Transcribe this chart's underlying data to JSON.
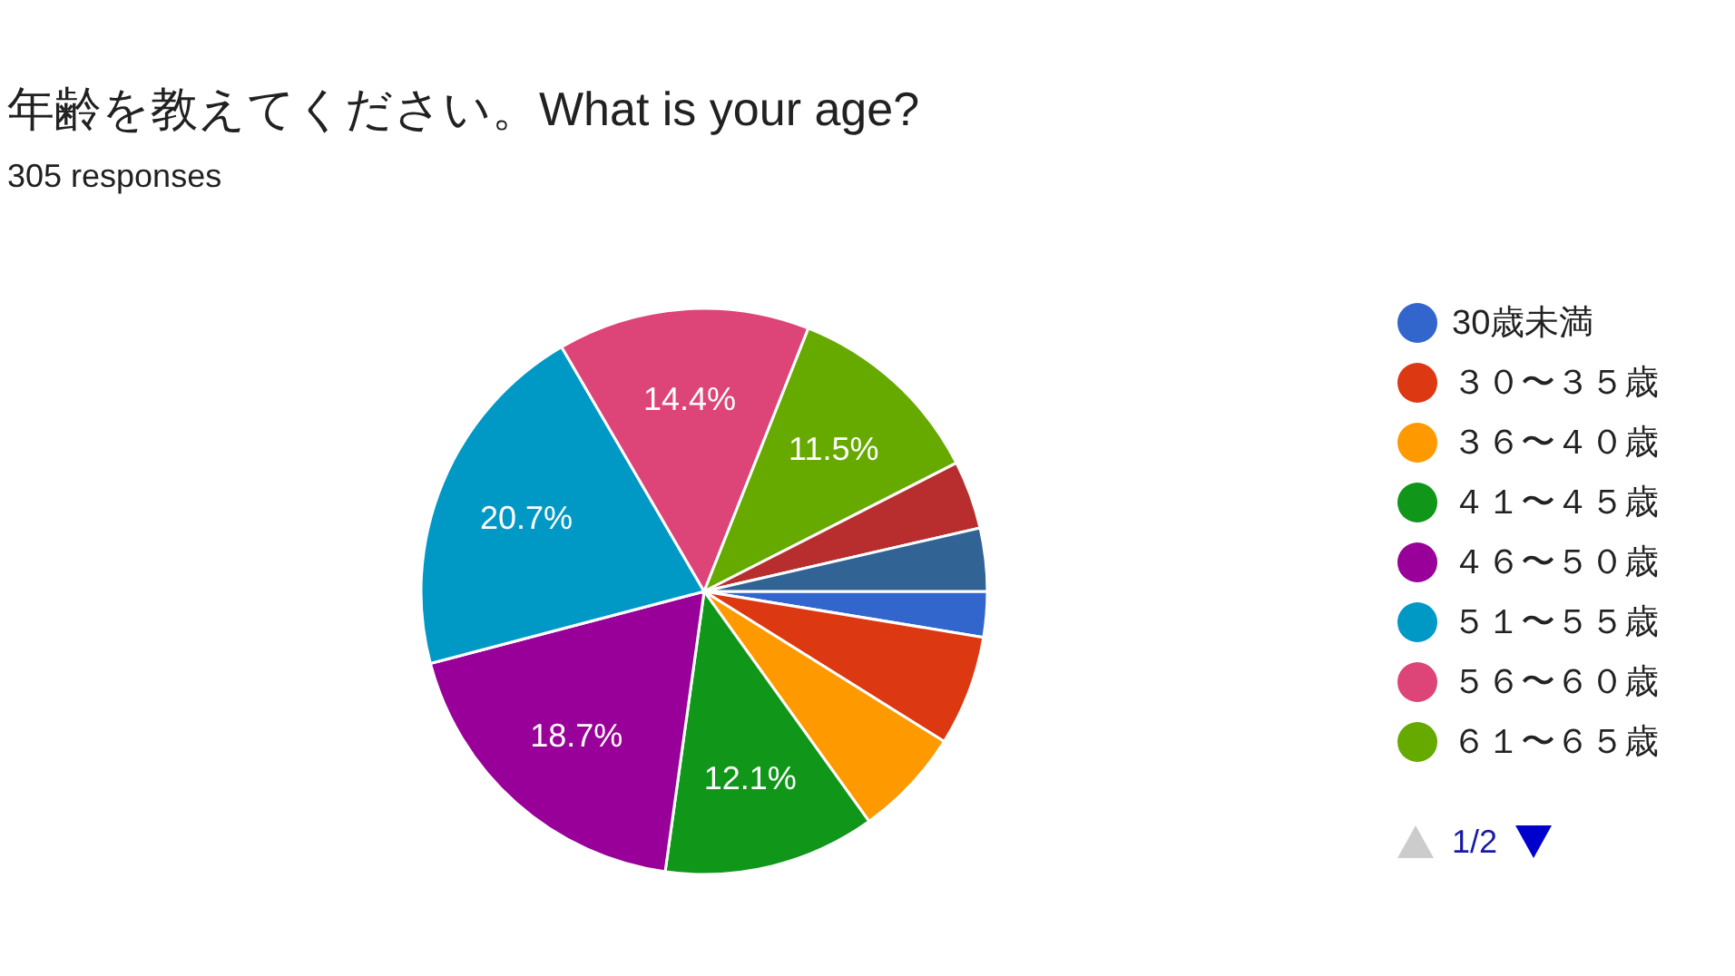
{
  "chart_data": {
    "type": "pie",
    "title": "年齢を教えてください。What is your age?",
    "subtitle": "305 responses",
    "categories": [
      "30歳未満",
      "３０〜３５歳",
      "３６〜４０歳",
      "４１〜４５歳",
      "４６〜５０歳",
      "５１〜５５歳",
      "５６〜６０歳",
      "６１〜６５歳",
      null,
      null
    ],
    "values": [
      2.6,
      6.3,
      6.2,
      12.1,
      18.7,
      20.7,
      14.4,
      11.5,
      3.9,
      3.6
    ],
    "colors": [
      "#3366cc",
      "#dc3912",
      "#ff9900",
      "#109618",
      "#990099",
      "#0099c6",
      "#dd4477",
      "#66aa00",
      "#b82e2e",
      "#316395"
    ],
    "value_labels": [
      null,
      null,
      null,
      "12.1%",
      "18.7%",
      "20.7%",
      "14.4%",
      "11.5%",
      null,
      null
    ],
    "legend": "right",
    "annotations": [
      "1/2"
    ]
  }
}
